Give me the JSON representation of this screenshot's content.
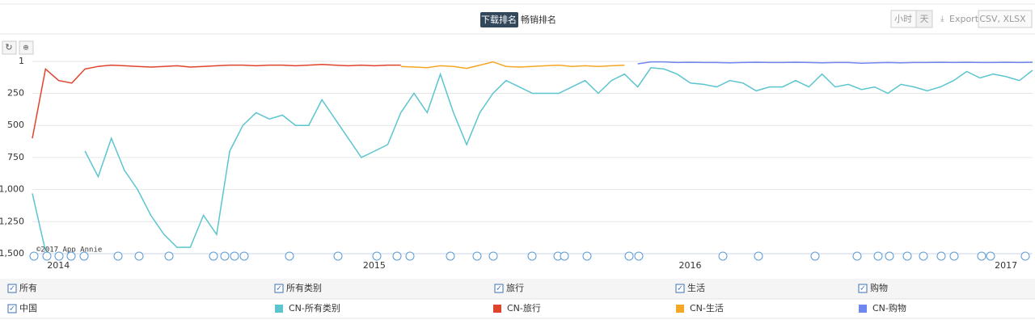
{
  "ui": {
    "tabs": [
      "下载排名",
      "畅销排名"
    ],
    "buttons": [
      "小时",
      "天",
      "Export",
      "CSV, XLSX"
    ],
    "filters": [
      "所有",
      "所有类别",
      "旅行",
      "生活",
      "购物",
      "中国"
    ]
  },
  "chart_data": {
    "type": "line",
    "credit": "©2017 App Annie",
    "categories": [
      null,
      "2014",
      null,
      null,
      null,
      null,
      null,
      null,
      null,
      null,
      null,
      null,
      null,
      null,
      null,
      null,
      null,
      null,
      null,
      null,
      null,
      null,
      null,
      null,
      null,
      "2015",
      null,
      null,
      null,
      null,
      null,
      null,
      null,
      null,
      null,
      null,
      null,
      null,
      null,
      null,
      null,
      null,
      null,
      null,
      null,
      null,
      null,
      null,
      null,
      "2016",
      null,
      null,
      null,
      null,
      null,
      null,
      null,
      null,
      null,
      null,
      null,
      null,
      null,
      null,
      null,
      null,
      null,
      null,
      null,
      null,
      null,
      null,
      null,
      "2017",
      null,
      null,
      null
    ],
    "series": [
      {
        "name": "CN-所有类别",
        "color": "#5bc5cf",
        "values": [
          1030,
          1480,
          null,
          null,
          700,
          900,
          600,
          850,
          1000,
          1200,
          1350,
          1450,
          1450,
          1200,
          1350,
          700,
          500,
          400,
          450,
          420,
          500,
          500,
          300,
          450,
          600,
          750,
          700,
          650,
          400,
          250,
          400,
          100,
          400,
          650,
          400,
          250,
          150,
          200,
          250,
          250,
          250,
          200,
          150,
          250,
          150,
          100,
          200,
          50,
          60,
          100,
          170,
          180,
          200,
          150,
          170,
          230,
          200,
          200,
          150,
          200,
          100,
          200,
          180,
          220,
          200,
          250,
          180,
          200,
          230,
          200,
          150,
          80,
          130,
          100,
          120,
          150,
          70
        ]
      },
      {
        "name": "CN-旅行",
        "color": "#e0432b",
        "values": [
          600,
          60,
          150,
          170,
          60,
          40,
          30,
          35,
          40,
          45,
          40,
          35,
          45,
          40,
          35,
          30,
          30,
          35,
          30,
          30,
          35,
          30,
          25,
          30,
          35,
          30,
          35,
          30,
          30,
          null,
          null,
          null,
          null,
          null,
          null,
          null,
          null,
          null,
          null,
          null,
          null,
          null,
          null,
          null,
          null,
          null,
          null,
          null,
          null,
          null,
          null,
          null,
          null,
          null,
          null,
          null,
          null,
          null,
          null,
          null,
          null,
          null,
          null,
          null,
          null,
          null,
          null,
          null,
          null,
          null,
          null,
          null,
          null,
          null,
          null,
          null,
          null
        ]
      },
      {
        "name": "CN-生活",
        "color": "#f5a623",
        "values": [
          null,
          null,
          null,
          null,
          null,
          null,
          null,
          null,
          null,
          null,
          null,
          null,
          null,
          null,
          null,
          null,
          null,
          null,
          null,
          null,
          null,
          null,
          null,
          null,
          null,
          null,
          null,
          null,
          40,
          45,
          50,
          35,
          40,
          55,
          30,
          5,
          40,
          45,
          40,
          35,
          30,
          40,
          35,
          40,
          35,
          30,
          null,
          null,
          null,
          null,
          null,
          null,
          null,
          null,
          null,
          null,
          null,
          null,
          null,
          null,
          null,
          null,
          null,
          null,
          null,
          null,
          null,
          null,
          null,
          null,
          null,
          null,
          null,
          null,
          null,
          null,
          null
        ]
      },
      {
        "name": "CN-购物",
        "color": "#6f86f0",
        "values": [
          null,
          null,
          null,
          null,
          null,
          null,
          null,
          null,
          null,
          null,
          null,
          null,
          null,
          null,
          null,
          null,
          null,
          null,
          null,
          null,
          null,
          null,
          null,
          null,
          null,
          null,
          null,
          null,
          null,
          null,
          null,
          null,
          null,
          null,
          null,
          null,
          null,
          null,
          null,
          null,
          null,
          null,
          null,
          null,
          null,
          null,
          20,
          5,
          5,
          10,
          8,
          10,
          10,
          12,
          10,
          8,
          10,
          10,
          8,
          10,
          12,
          10,
          10,
          15,
          12,
          10,
          12,
          10,
          10,
          8,
          10,
          8,
          10,
          10,
          8,
          10,
          8
        ]
      }
    ],
    "ylim": [
      1500,
      1
    ],
    "yticks": [
      1,
      250,
      500,
      750,
      {
        "value": 1000,
        "label": "1,000"
      },
      {
        "value": 1250,
        "label": "1,250"
      },
      {
        "value": 1500,
        "label": "1,500"
      }
    ],
    "grid": true
  }
}
